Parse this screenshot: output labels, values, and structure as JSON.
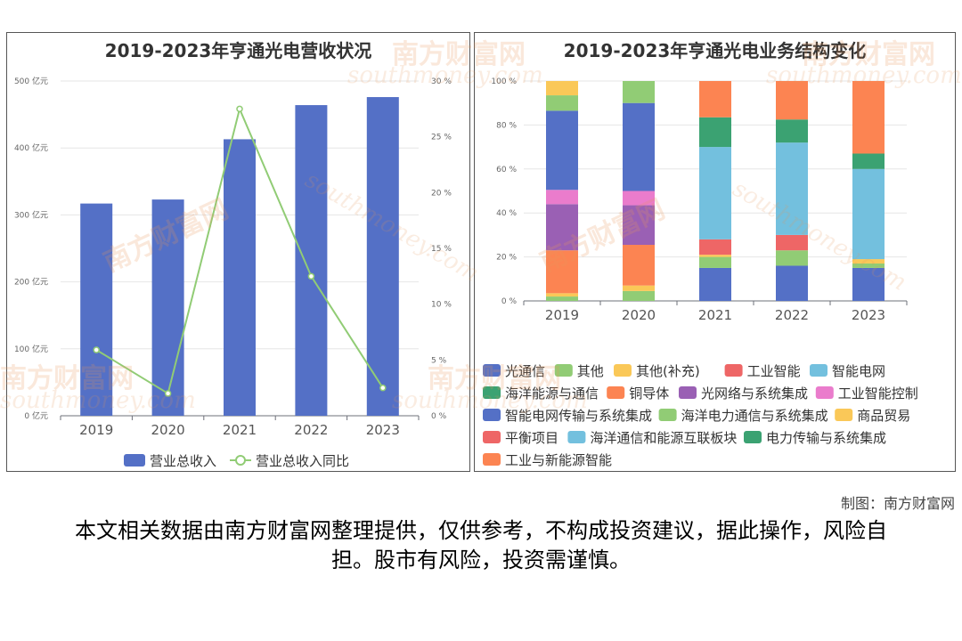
{
  "watermark": {
    "cn": "南方财富网",
    "en": "southmoney.com"
  },
  "credit": "制图：南方财富网",
  "disclaimer": "本文相关数据由南方财富网整理提供，仅供参考，不构成投资建议，据此操作，风险自担。股市有风险，投资需谨慎。",
  "chart_data": [
    {
      "type": "bar",
      "title": "2019-2023年亨通光电营收状况",
      "categories": [
        "2019",
        "2020",
        "2021",
        "2022",
        "2023"
      ],
      "yticks_left": [
        "0 亿元",
        "100 亿元",
        "200 亿元",
        "300 亿元",
        "400 亿元",
        "500 亿元"
      ],
      "yticks_right": [
        "0 %",
        "5 %",
        "10 %",
        "15 %",
        "20 %",
        "25 %",
        "30 %"
      ],
      "ylim_left": [
        0,
        500
      ],
      "ylim_right": [
        0,
        30
      ],
      "series": [
        {
          "name": "营业总收入",
          "type": "bar",
          "axis": "left",
          "color": "#5470c6",
          "values": [
            317,
            323,
            413,
            464,
            476
          ]
        },
        {
          "name": "营业总收入同比",
          "type": "line",
          "axis": "right",
          "color": "#91cc75",
          "values": [
            5.9,
            2.0,
            27.5,
            12.5,
            2.5
          ]
        }
      ],
      "grid": true,
      "legend": "bottom"
    },
    {
      "type": "bar",
      "stacked": true,
      "title": "2019-2023年亨通光电业务结构变化",
      "categories": [
        "2019",
        "2020",
        "2021",
        "2022",
        "2023"
      ],
      "yticks": [
        "0 %",
        "20 %",
        "40 %",
        "60 %",
        "80 %",
        "100 %"
      ],
      "ylim": [
        0,
        100
      ],
      "series": [
        {
          "name": "光通信",
          "color": "#5470c6",
          "values": [
            0,
            0,
            0,
            0,
            0
          ]
        },
        {
          "name": "其他",
          "color": "#91cc75",
          "values": [
            2,
            4.5,
            0,
            0,
            0
          ]
        },
        {
          "name": "其他(补充)",
          "color": "#fac858",
          "values": [
            1.5,
            2.5,
            0,
            0,
            0
          ]
        },
        {
          "name": "工业智能",
          "color": "#ee6666",
          "values": [
            0,
            0,
            0,
            0,
            0
          ]
        },
        {
          "name": "智能电网",
          "color": "#73c0de",
          "values": [
            0,
            0,
            0,
            0,
            0
          ]
        },
        {
          "name": "海洋能源与通信",
          "color": "#3ba272",
          "values": [
            0,
            0,
            0,
            0,
            0
          ]
        },
        {
          "name": "铜导体",
          "color": "#fc8452",
          "values": [
            19.5,
            18.5,
            0,
            0,
            0
          ]
        },
        {
          "name": "光网络与系统集成",
          "color": "#9a60b4",
          "values": [
            21,
            18,
            0,
            0,
            0
          ]
        },
        {
          "name": "工业智能控制",
          "color": "#ea7ccc",
          "values": [
            6.5,
            6.5,
            0,
            0,
            0
          ]
        },
        {
          "name": "智能电网传输与系统集成",
          "color": "#5470c6",
          "values": [
            36,
            40,
            15,
            16,
            15
          ]
        },
        {
          "name": "海洋电力通信与系统集成",
          "color": "#91cc75",
          "values": [
            7,
            10,
            5,
            7,
            2
          ]
        },
        {
          "name": "商品贸易",
          "color": "#fac858",
          "values": [
            6.5,
            0,
            1,
            0,
            2
          ]
        },
        {
          "name": "平衡项目",
          "color": "#ee6666",
          "values": [
            0,
            0,
            7,
            7,
            0
          ]
        },
        {
          "name": "海洋通信和能源互联板块",
          "color": "#73c0de",
          "values": [
            0,
            0,
            42,
            42,
            41
          ]
        },
        {
          "name": "电力传输与系统集成",
          "color": "#3ba272",
          "values": [
            0,
            0,
            13.5,
            10.5,
            7
          ]
        },
        {
          "name": "工业与新能源智能",
          "color": "#fc8452",
          "values": [
            0,
            0,
            16.5,
            17.5,
            33
          ]
        }
      ],
      "grid": true,
      "legend": "bottom"
    }
  ]
}
